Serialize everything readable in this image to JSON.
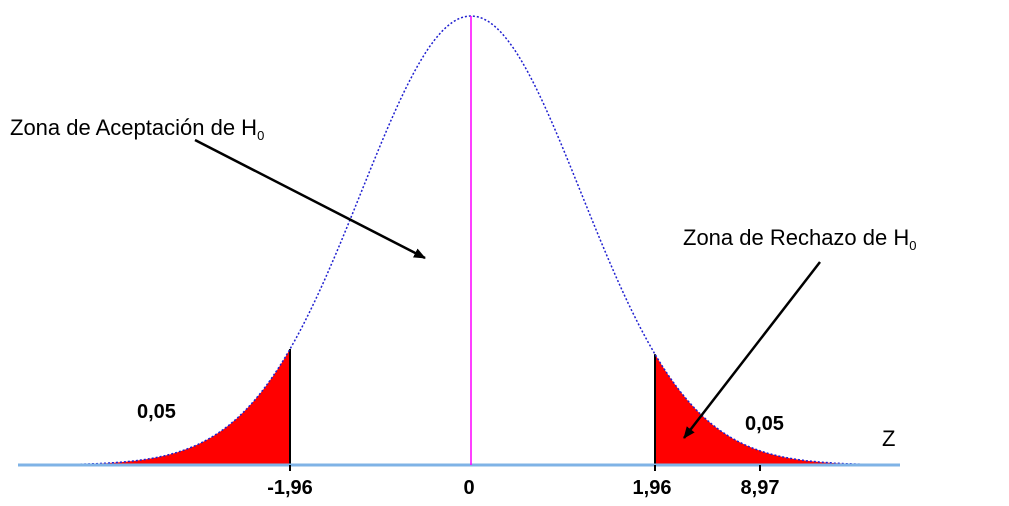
{
  "annotations": {
    "acceptance_zone": {
      "text": "Zona de Aceptación de H",
      "subscript": "0"
    },
    "rejection_zone": {
      "text": "Zona de Rechazo de H",
      "subscript": "0"
    },
    "left_tail_area": "0,05",
    "right_tail_area": "0,05",
    "axis_label": "Z"
  },
  "axis_labels": [
    "-1,96",
    "0",
    "1,96",
    "8,97"
  ]
}
